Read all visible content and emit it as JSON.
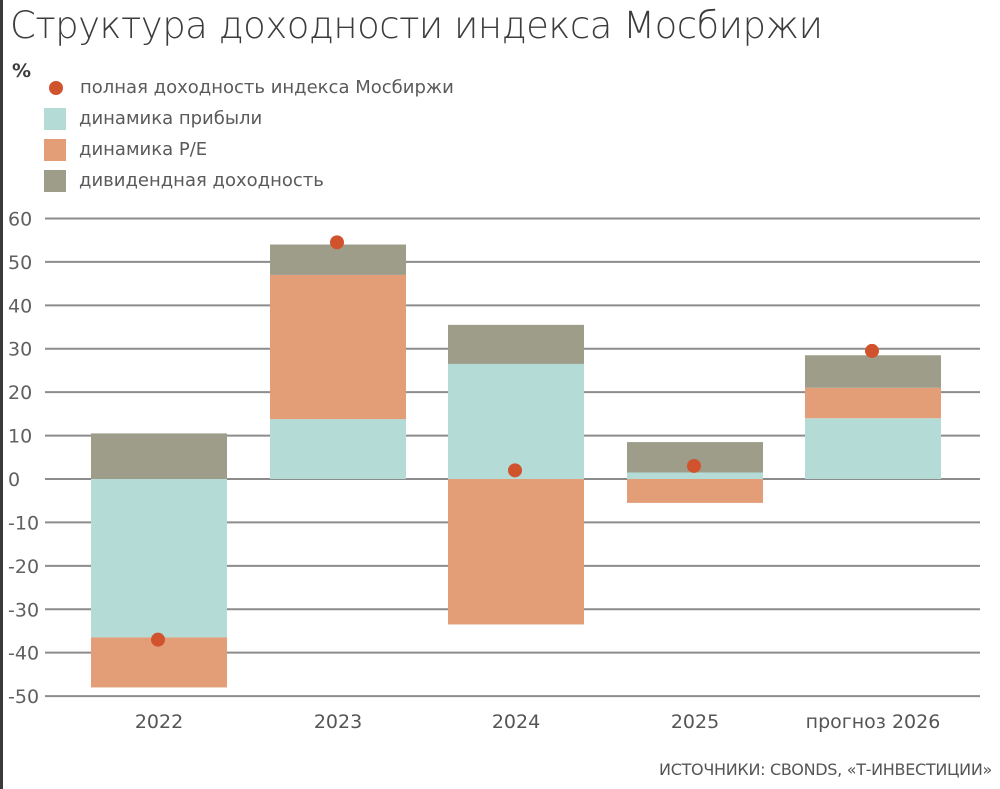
{
  "title": "Структура доходности индекса Мосбиржи",
  "unit": "%",
  "source": "ИСТОЧНИКИ: CBONDS, «Т-ИНВЕСТИЦИИ»",
  "colors": {
    "total": "#d0532e",
    "earnings": "#b5dbd6",
    "pe": "#e39e78",
    "dividend": "#9e9d8a",
    "grid": "#8c8c8c",
    "text": "#555555"
  },
  "legend": [
    {
      "key": "total",
      "label": "полная доходность индекса Мосбиржи",
      "shape": "dot"
    },
    {
      "key": "earnings",
      "label": "динамика прибыли",
      "shape": "square"
    },
    {
      "key": "pe",
      "label": "динамика P/E",
      "shape": "square"
    },
    {
      "key": "dividend",
      "label": "дивидендная доходность",
      "shape": "square"
    }
  ],
  "chart_data": {
    "type": "bar",
    "stacked": true,
    "title": "Структура доходности индекса Мосбиржи",
    "ylabel": "%",
    "xlabel": "",
    "ylim": [
      -50,
      60
    ],
    "yticks": [
      60,
      50,
      40,
      30,
      20,
      10,
      0,
      -10,
      -20,
      -30,
      -40,
      -50
    ],
    "grid": true,
    "legend_position": "top-left",
    "categories": [
      "2022",
      "2023",
      "2024",
      "2025",
      "прогноз 2026"
    ],
    "series": [
      {
        "name": "динамика прибыли",
        "key": "earnings",
        "values": [
          -36.5,
          13.8,
          26.5,
          1.5,
          14.0
        ]
      },
      {
        "name": "динамика P/E",
        "key": "pe",
        "values": [
          -11.5,
          33.2,
          -33.5,
          -5.5,
          7.0
        ]
      },
      {
        "name": "дивидендная доходность",
        "key": "dividend",
        "values": [
          10.5,
          7.0,
          9.0,
          7.0,
          7.5
        ]
      },
      {
        "name": "полная доходность индекса Мосбиржи",
        "key": "total",
        "type": "scatter",
        "values": [
          -37.0,
          54.5,
          2.0,
          3.0,
          29.5
        ]
      }
    ]
  }
}
